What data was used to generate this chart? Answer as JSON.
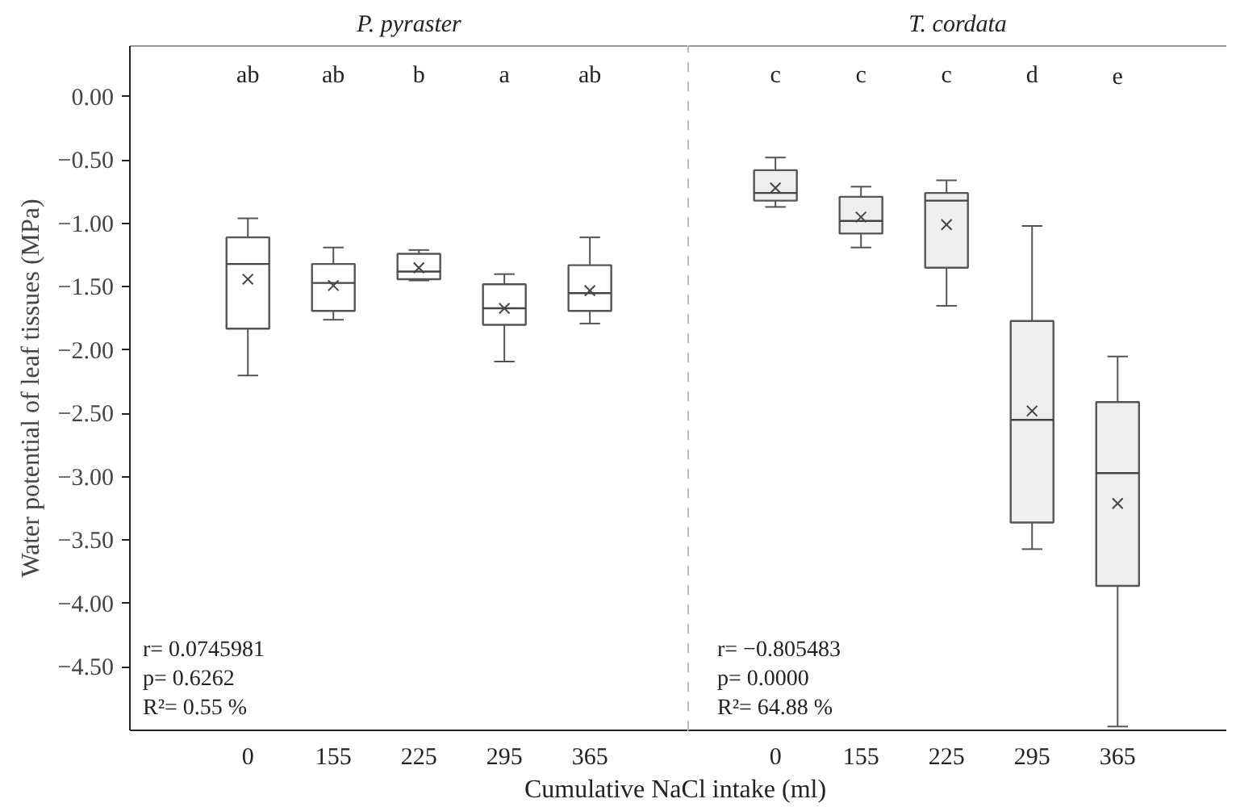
{
  "chart_data": [
    {
      "type": "box",
      "title": "P. pyraster",
      "ylabel": "Water potential of leaf tissues (MPa)",
      "xlabel": "Cumulative NaCl intake (ml)",
      "categories": [
        "0",
        "155",
        "225",
        "295",
        "365"
      ],
      "ylim": [
        -5.0,
        0.4
      ],
      "yticks": [
        {
          "value": 0,
          "label": "0.00"
        },
        {
          "value": -0.5,
          "label": "−0.50"
        },
        {
          "value": -1.0,
          "label": "−1.00"
        },
        {
          "value": -1.5,
          "label": "−1.50"
        },
        {
          "value": -2.0,
          "label": "−2.00"
        },
        {
          "value": -2.5,
          "label": "−2.50"
        },
        {
          "value": -3.0,
          "label": "−3.00"
        },
        {
          "value": -3.5,
          "label": "−3.50"
        },
        {
          "value": -4.0,
          "label": "−4.00"
        },
        {
          "value": -4.5,
          "label": "−4.50"
        }
      ],
      "grid": false,
      "marker": "cross",
      "series": [
        {
          "color": "#ffffff",
          "boxes": [
            {
              "low": -2.2,
              "q1": -1.83,
              "median": -1.32,
              "q3": -1.11,
              "high": -0.96,
              "mean": -1.44
            },
            {
              "low": -1.76,
              "q1": -1.69,
              "median": -1.47,
              "q3": -1.32,
              "high": -1.19,
              "mean": -1.49
            },
            {
              "low": -1.45,
              "q1": -1.44,
              "median": -1.38,
              "q3": -1.24,
              "high": -1.21,
              "mean": -1.35
            },
            {
              "low": -2.09,
              "q1": -1.8,
              "median": -1.67,
              "q3": -1.48,
              "high": -1.4,
              "mean": -1.67
            },
            {
              "low": -1.79,
              "q1": -1.69,
              "median": -1.55,
              "q3": -1.33,
              "high": -1.11,
              "mean": -1.53
            }
          ]
        }
      ],
      "annotations": [
        "ab",
        "ab",
        "b",
        "a",
        "ab",
        "r= 0.0745981",
        "p= 0.6262",
        "R²= 0.55 %"
      ]
    },
    {
      "type": "box",
      "title": "T. cordata",
      "categories": [
        "0",
        "155",
        "225",
        "295",
        "365"
      ],
      "ylim": [
        -5.0,
        0.4
      ],
      "tick_labels": "x",
      "grid": false,
      "marker": "cross",
      "series": [
        {
          "color": "#eeeeee",
          "boxes": [
            {
              "low": -0.87,
              "q1": -0.82,
              "median": -0.76,
              "q3": -0.58,
              "high": -0.48,
              "mean": -0.72
            },
            {
              "low": -1.19,
              "q1": -1.08,
              "median": -0.98,
              "q3": -0.79,
              "high": -0.71,
              "mean": -0.95
            },
            {
              "low": -1.65,
              "q1": -1.35,
              "median": -0.82,
              "q3": -0.76,
              "high": -0.66,
              "mean": -1.01
            },
            {
              "low": -3.57,
              "q1": -3.36,
              "median": -2.55,
              "q3": -1.77,
              "high": -1.02,
              "mean": -2.48
            },
            {
              "low": -4.97,
              "q1": -3.86,
              "median": -2.97,
              "q3": -2.41,
              "high": -2.05,
              "mean": -3.21
            }
          ]
        }
      ],
      "annotations": [
        "c",
        "c",
        "c",
        "d",
        "e",
        "r= −0.805483",
        "p= 0.0000",
        "R²= 64.88 %"
      ]
    }
  ]
}
